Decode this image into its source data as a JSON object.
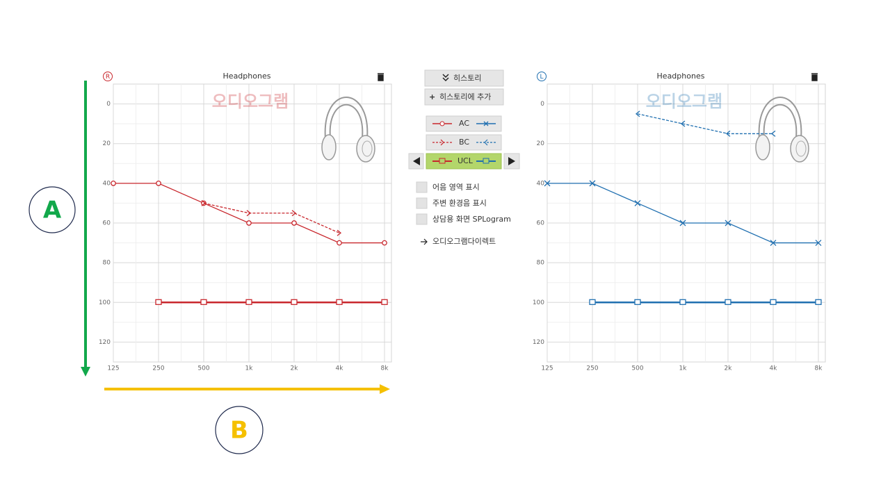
{
  "annotations": {
    "a": "A",
    "b": "B"
  },
  "controls": {
    "history": "히스토리",
    "add_history": "히스토리에 추가",
    "legend": [
      "AC",
      "BC",
      "UCL"
    ],
    "options": [
      "어음 영역 표시",
      "주변 환경음 표시",
      "상담용 화면 SPLogram"
    ],
    "link": "오디오그램다이렉트"
  },
  "chart_data": [
    {
      "type": "line",
      "ear": "R",
      "title": "Headphones",
      "watermark": "오디오그램",
      "categories": [
        "125",
        "250",
        "500",
        "1k",
        "2k",
        "4k",
        "8k"
      ],
      "ylim": [
        -10,
        130
      ],
      "y_inverted": true,
      "yticks": [
        0,
        20,
        40,
        60,
        80,
        100,
        120
      ],
      "grid": true,
      "series": [
        {
          "color": "#c8262c",
          "marker": "circle",
          "dashed": false,
          "values": [
            40,
            40,
            50,
            60,
            60,
            70,
            70
          ]
        },
        {
          "color": "#c8262c",
          "marker": "right",
          "dashed": true,
          "values": [
            null,
            null,
            50,
            55,
            55,
            65,
            null
          ]
        },
        {
          "color": "#c8262c",
          "marker": "ucl",
          "dashed": false,
          "values": [
            null,
            100,
            100,
            100,
            100,
            100,
            100
          ]
        }
      ]
    },
    {
      "type": "line",
      "ear": "L",
      "title": "Headphones",
      "watermark": "오디오그램",
      "categories": [
        "125",
        "250",
        "500",
        "1k",
        "2k",
        "4k",
        "8k"
      ],
      "ylim": [
        -10,
        130
      ],
      "y_inverted": true,
      "yticks": [
        0,
        20,
        40,
        60,
        80,
        100,
        120
      ],
      "grid": true,
      "series": [
        {
          "color": "#1f6fb0",
          "marker": "cross",
          "dashed": false,
          "values": [
            40,
            40,
            50,
            60,
            60,
            70,
            70
          ]
        },
        {
          "color": "#1f6fb0",
          "marker": "left",
          "dashed": true,
          "values": [
            null,
            null,
            5,
            10,
            15,
            15,
            null
          ]
        },
        {
          "color": "#1f6fb0",
          "marker": "ucl",
          "dashed": false,
          "values": [
            null,
            100,
            100,
            100,
            100,
            100,
            100
          ]
        }
      ]
    }
  ]
}
